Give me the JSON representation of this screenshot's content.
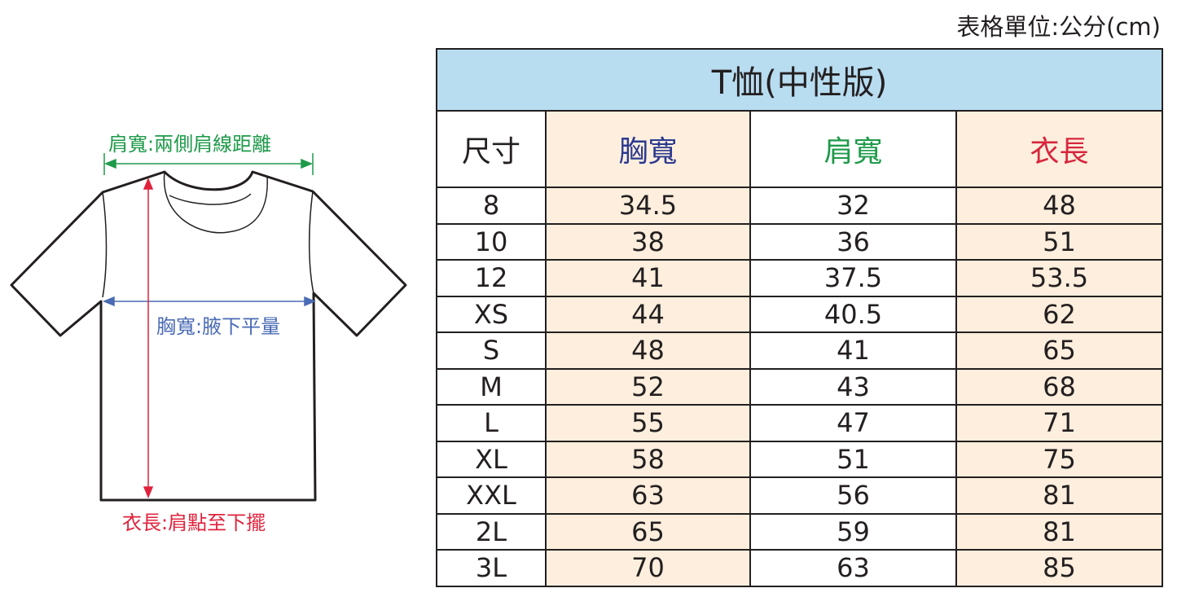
{
  "unit_note": "表格單位:公分(cm)",
  "diagram": {
    "shoulder_label": "肩寬:兩側肩線距離",
    "chest_label": "胸寬:腋下平量",
    "length_label": "衣長:肩點至下擺",
    "colors": {
      "shoulder": "#1e9a4a",
      "chest": "#4a6bb5",
      "length": "#e0223c"
    }
  },
  "table": {
    "title": "T恤(中性版)",
    "headers": [
      "尺寸",
      "胸寬",
      "肩寬",
      "衣長"
    ],
    "header_colors": [
      "#231f20",
      "#2b3990",
      "#1e9a4a",
      "#d7263d"
    ],
    "rows": [
      [
        "8",
        "34.5",
        "32",
        "48"
      ],
      [
        "10",
        "38",
        "36",
        "51"
      ],
      [
        "12",
        "41",
        "37.5",
        "53.5"
      ],
      [
        "XS",
        "44",
        "40.5",
        "62"
      ],
      [
        "S",
        "48",
        "41",
        "65"
      ],
      [
        "M",
        "52",
        "43",
        "68"
      ],
      [
        "L",
        "55",
        "47",
        "71"
      ],
      [
        "XL",
        "58",
        "51",
        "75"
      ],
      [
        "XXL",
        "63",
        "56",
        "81"
      ],
      [
        "2L",
        "65",
        "59",
        "81"
      ],
      [
        "3L",
        "70",
        "63",
        "85"
      ]
    ]
  }
}
